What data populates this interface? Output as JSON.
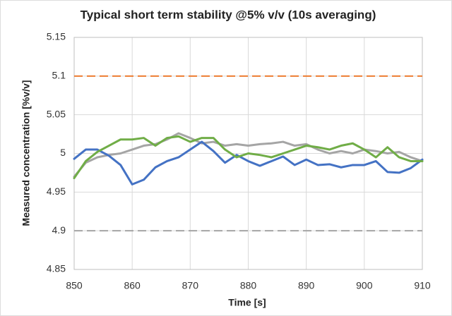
{
  "chart_data": {
    "type": "line",
    "title": "Typical short term stability @5% v/v (10s averaging)",
    "x_label": "Time [s]",
    "y_label": "Measured concentration [%v/v]",
    "x": [
      850,
      852,
      854,
      856,
      858,
      860,
      862,
      864,
      866,
      868,
      870,
      872,
      874,
      876,
      878,
      880,
      882,
      884,
      886,
      888,
      890,
      892,
      894,
      896,
      898,
      900,
      902,
      904,
      906,
      908,
      910
    ],
    "series": [
      {
        "color": "#a5a5a5",
        "values": [
          4.97,
          4.988,
          4.995,
          4.998,
          5.0,
          5.005,
          5.01,
          5.012,
          5.018,
          5.026,
          5.02,
          5.013,
          5.015,
          5.01,
          5.012,
          5.01,
          5.012,
          5.013,
          5.015,
          5.01,
          5.012,
          5.005,
          5.0,
          5.003,
          5.0,
          5.005,
          5.003,
          5.0,
          5.002,
          4.995,
          4.99
        ]
      },
      {
        "color": "#4472c4",
        "values": [
          4.993,
          5.005,
          5.005,
          4.997,
          4.985,
          4.96,
          4.966,
          4.982,
          4.99,
          4.995,
          5.005,
          5.015,
          5.003,
          4.988,
          4.998,
          4.99,
          4.984,
          4.99,
          4.996,
          4.985,
          4.992,
          4.985,
          4.986,
          4.982,
          4.985,
          4.985,
          4.99,
          4.976,
          4.975,
          4.981,
          4.992
        ]
      },
      {
        "color": "#70ad47",
        "values": [
          4.968,
          4.99,
          5.002,
          5.01,
          5.018,
          5.018,
          5.02,
          5.01,
          5.02,
          5.022,
          5.015,
          5.02,
          5.02,
          5.005,
          4.995,
          5.0,
          4.998,
          4.995,
          5.0,
          5.005,
          5.01,
          5.008,
          5.005,
          5.01,
          5.013,
          5.005,
          4.995,
          5.008,
          4.995,
          4.99,
          4.99
        ]
      }
    ],
    "reference_lines": [
      {
        "value": 5.1,
        "color": "#ed7d31"
      },
      {
        "value": 4.9,
        "color": "#a5a5a5"
      }
    ],
    "xlim": [
      850,
      910
    ],
    "xticks": [
      850,
      860,
      870,
      880,
      890,
      900,
      910
    ],
    "ylim": [
      4.85,
      5.15
    ],
    "yticks": [
      4.85,
      4.9,
      4.95,
      5,
      5.05,
      5.1,
      5.15
    ],
    "grid": true
  }
}
